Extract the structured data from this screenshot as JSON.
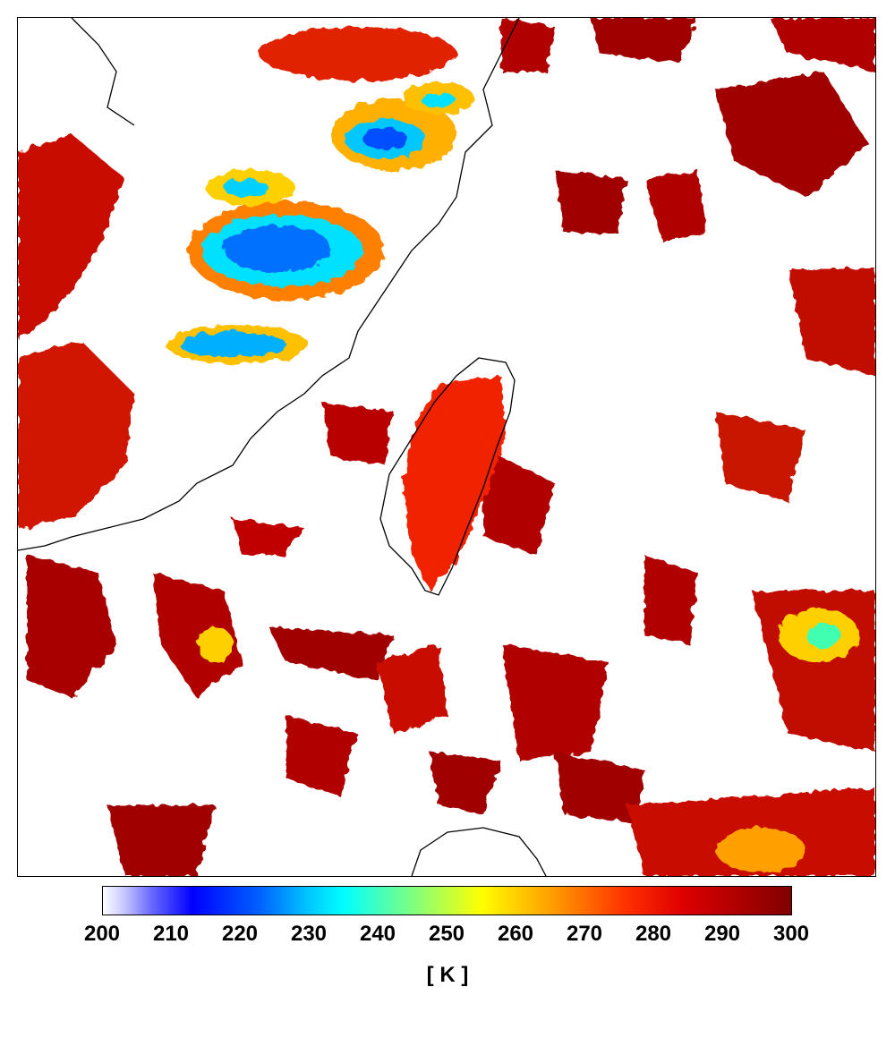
{
  "colorbar": {
    "ticks": [
      "200",
      "210",
      "220",
      "230",
      "240",
      "250",
      "260",
      "270",
      "280",
      "290",
      "300"
    ],
    "unit": "[ K ]",
    "min": 200,
    "max": 300,
    "colors": {
      "low": "#ffffff",
      "cold": "#0000ff",
      "cyan": "#00ffff",
      "mid": "#ffff00",
      "warm": "#ff3000",
      "high": "#800000"
    }
  },
  "map": {
    "variable": "brightness temperature",
    "coastline_color": "#000000",
    "features": [
      "taiwan-island",
      "china-coastline",
      "luzon-coast",
      "cloud-field"
    ]
  }
}
